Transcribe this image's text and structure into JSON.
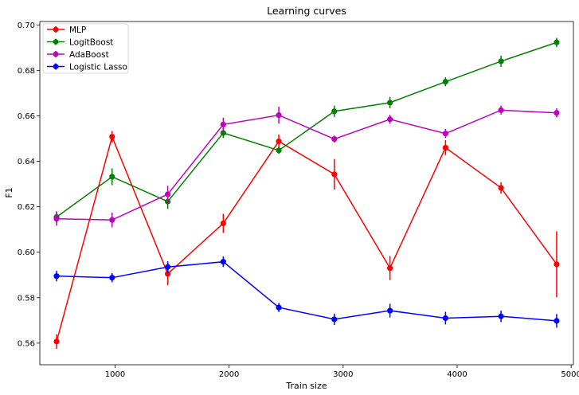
{
  "chart_data": {
    "type": "line",
    "title": "Learning curves",
    "xlabel": "Train size",
    "ylabel": "F1",
    "xlim": [
      340,
      5020
    ],
    "ylim": [
      0.5505,
      0.7015
    ],
    "xticks": [
      1000,
      2000,
      3000,
      4000,
      5000
    ],
    "yticks": [
      0.56,
      0.58,
      0.6,
      0.62,
      0.64,
      0.66,
      0.68,
      0.7
    ],
    "xtick_labels": [
      "1000",
      "2000",
      "3000",
      "4000",
      "5000"
    ],
    "ytick_labels": [
      "0.56",
      "0.58",
      "0.60",
      "0.62",
      "0.64",
      "0.66",
      "0.68",
      "0.70"
    ],
    "grid": false,
    "legend_position": "upper-left",
    "x": [
      487,
      974,
      1462,
      1949,
      2436,
      2923,
      3411,
      3898,
      4385,
      4873
    ],
    "series": [
      {
        "name": "MLP",
        "color": "#ff0000",
        "values": [
          0.5607,
          0.6508,
          0.5905,
          0.6127,
          0.6488,
          0.6343,
          0.593,
          0.646,
          0.6283,
          0.5947
        ],
        "errors": [
          0.0032,
          0.0025,
          0.005,
          0.0042,
          0.003,
          0.0067,
          0.0053,
          0.0033,
          0.0025,
          0.0145
        ]
      },
      {
        "name": "LogitBoost",
        "color": "#008000",
        "values": [
          0.6155,
          0.6332,
          0.6223,
          0.6525,
          0.6448,
          0.662,
          0.6658,
          0.675,
          0.684,
          0.6923
        ],
        "errors": [
          0.0025,
          0.0037,
          0.0032,
          0.0022,
          0.0015,
          0.0025,
          0.0025,
          0.002,
          0.0025,
          0.002
        ]
      },
      {
        "name": "AdaBoost",
        "color": "#bf00bf",
        "values": [
          0.6147,
          0.6142,
          0.6255,
          0.6562,
          0.6603,
          0.6498,
          0.6585,
          0.6522,
          0.6625,
          0.6613
        ],
        "errors": [
          0.003,
          0.0032,
          0.0037,
          0.003,
          0.0037,
          0.0015,
          0.002,
          0.002,
          0.002,
          0.002
        ]
      },
      {
        "name": "Logistic Lasso",
        "color": "#0000ff",
        "values": [
          0.5895,
          0.5888,
          0.5935,
          0.5958,
          0.5757,
          0.5705,
          0.5743,
          0.571,
          0.5718,
          0.5698
        ],
        "errors": [
          0.0023,
          0.002,
          0.0025,
          0.0023,
          0.002,
          0.0025,
          0.003,
          0.0028,
          0.0025,
          0.003
        ]
      }
    ]
  }
}
